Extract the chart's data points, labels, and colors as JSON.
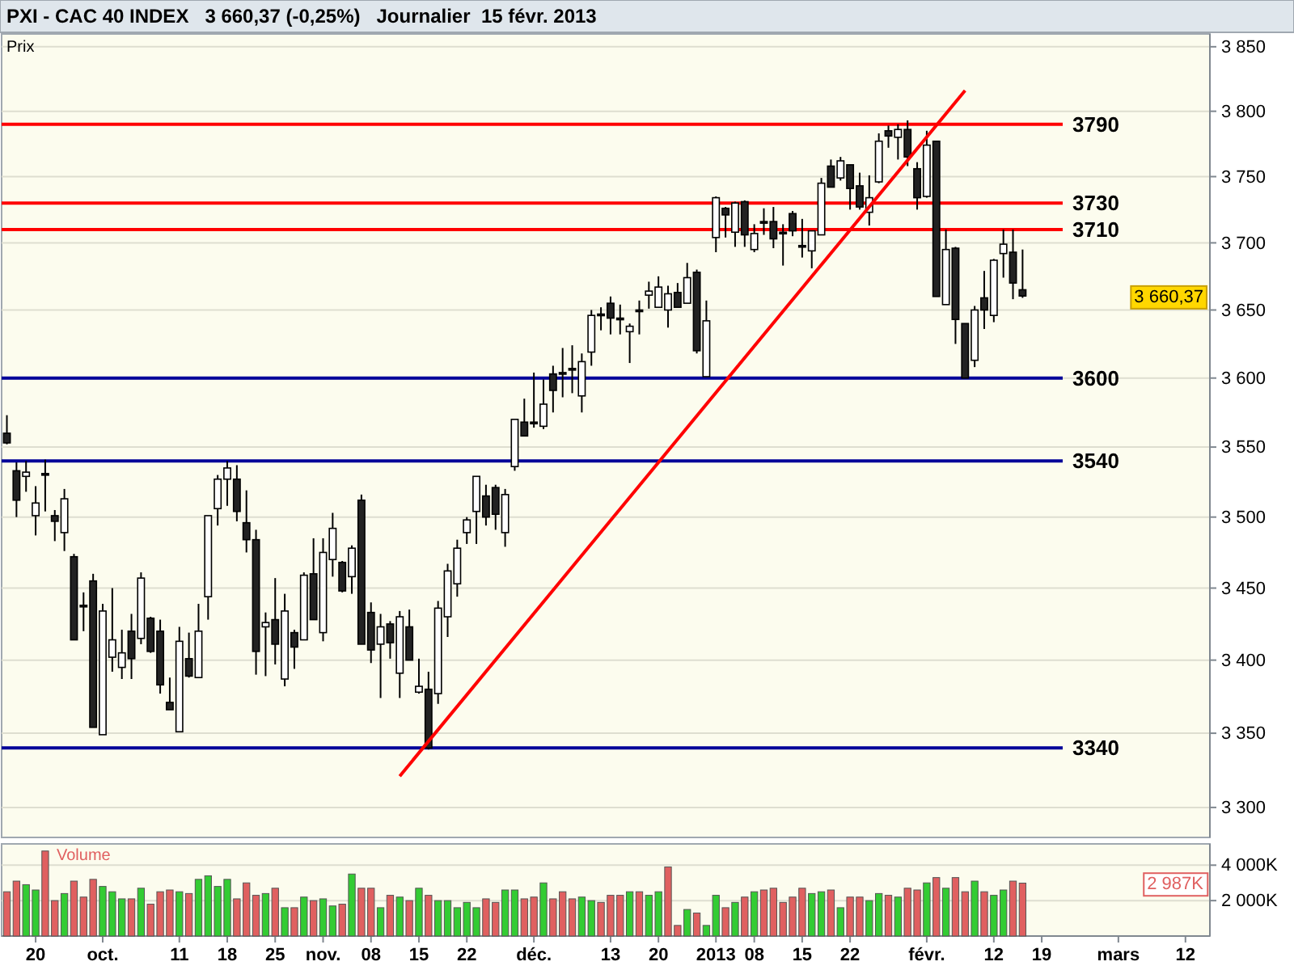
{
  "chart_data": [
    {
      "type": "candlestick",
      "title": "PXI - CAC 40 INDEX   3 660,37 (-0,25%)   Journalier  15 févr. 2013",
      "ylabel": "Prix",
      "categories": [
        null,
        null,
        null,
        null,
        null,
        null,
        null,
        null,
        null,
        null,
        null,
        null,
        null,
        null,
        null,
        null,
        null,
        null,
        null,
        null,
        null,
        null,
        null,
        null,
        null,
        null,
        null,
        null,
        null,
        null,
        null,
        null,
        null,
        null,
        null,
        null,
        null,
        null,
        null,
        null,
        null,
        null,
        null,
        null,
        null,
        null,
        null,
        null,
        null,
        null,
        null,
        null,
        null,
        null,
        null,
        null,
        null,
        null,
        null,
        null,
        null,
        null,
        null,
        null,
        null,
        null,
        null,
        null,
        null,
        null,
        null,
        null,
        null,
        null,
        null,
        null,
        null,
        null,
        null,
        null,
        null,
        null,
        null,
        null,
        null,
        null,
        null,
        null,
        null,
        null,
        null,
        null,
        null,
        null,
        null,
        null,
        null,
        null,
        null,
        null,
        null,
        null,
        null,
        null,
        null,
        null,
        null,
        null,
        null,
        null,
        null,
        null,
        null,
        null,
        null,
        null,
        null,
        null,
        null,
        null,
        null,
        null,
        null,
        null,
        null,
        null
      ],
      "ohlc": [
        [
          3560,
          3573,
          3552,
          3553
        ],
        [
          3533,
          3539,
          3500,
          3512
        ],
        [
          3529,
          3540,
          3518,
          3532
        ],
        [
          3501,
          3522,
          3487,
          3510
        ],
        [
          3531,
          3541,
          3504,
          3530
        ],
        [
          3501,
          3505,
          3483,
          3497
        ],
        [
          3489,
          3520,
          3476,
          3513
        ],
        [
          3472,
          3474,
          3414,
          3414
        ],
        [
          3438,
          3447,
          3420,
          3437
        ],
        [
          3455,
          3460,
          3354,
          3354
        ],
        [
          3349,
          3439,
          3349,
          3434
        ],
        [
          3402,
          3450,
          3392,
          3414
        ],
        [
          3395,
          3421,
          3387,
          3405
        ],
        [
          3420,
          3432,
          3387,
          3401
        ],
        [
          3415,
          3461,
          3411,
          3457
        ],
        [
          3429,
          3430,
          3405,
          3406
        ],
        [
          3420,
          3428,
          3377,
          3383
        ],
        [
          3371,
          3388,
          3366,
          3366
        ],
        [
          3351,
          3423,
          3351,
          3413
        ],
        [
          3401,
          3419,
          3388,
          3389
        ],
        [
          3388,
          3439,
          3388,
          3420
        ],
        [
          3444,
          3501,
          3428,
          3501
        ],
        [
          3506,
          3530,
          3494,
          3527
        ],
        [
          3527,
          3540,
          3508,
          3535
        ],
        [
          3527,
          3537,
          3497,
          3504
        ],
        [
          3496,
          3519,
          3475,
          3484
        ],
        [
          3484,
          3491,
          3390,
          3406
        ],
        [
          3423,
          3433,
          3389,
          3426
        ],
        [
          3428,
          3457,
          3397,
          3411
        ],
        [
          3387,
          3446,
          3382,
          3434
        ],
        [
          3419,
          3421,
          3394,
          3409
        ],
        [
          3414,
          3461,
          3414,
          3459
        ],
        [
          3460,
          3485,
          3428,
          3428
        ],
        [
          3419,
          3485,
          3413,
          3475
        ],
        [
          3470,
          3503,
          3458,
          3492
        ],
        [
          3468,
          3469,
          3447,
          3448
        ],
        [
          3458,
          3480,
          3446,
          3478
        ],
        [
          3512,
          3516,
          3411,
          3411
        ],
        [
          3433,
          3440,
          3398,
          3407
        ],
        [
          3411,
          3432,
          3374,
          3423
        ],
        [
          3425,
          3427,
          3401,
          3412
        ],
        [
          3391,
          3434,
          3374,
          3430
        ],
        [
          3423,
          3435,
          3400,
          3400
        ],
        [
          3378,
          3401,
          3377,
          3382
        ],
        [
          3380,
          3392,
          3339,
          3340
        ],
        [
          3377,
          3441,
          3370,
          3436
        ],
        [
          3430,
          3467,
          3416,
          3462
        ],
        [
          3453,
          3484,
          3444,
          3478
        ],
        [
          3489,
          3500,
          3481,
          3498
        ],
        [
          3504,
          3529,
          3481,
          3529
        ],
        [
          3515,
          3523,
          3494,
          3500
        ],
        [
          3521,
          3523,
          3491,
          3502
        ],
        [
          3489,
          3520,
          3479,
          3516
        ],
        [
          3536,
          3570,
          3533,
          3570
        ],
        [
          3568,
          3585,
          3558,
          3558
        ],
        [
          3568,
          3604,
          3564,
          3567
        ],
        [
          3565,
          3599,
          3563,
          3581
        ],
        [
          3603,
          3609,
          3575,
          3591
        ],
        [
          3604,
          3622,
          3586,
          3603
        ],
        [
          3607,
          3624,
          3589,
          3606
        ],
        [
          3587,
          3618,
          3575,
          3612
        ],
        [
          3619,
          3650,
          3609,
          3646
        ],
        [
          3647,
          3652,
          3635,
          3646
        ],
        [
          3655,
          3660,
          3632,
          3644
        ],
        [
          3644,
          3654,
          3632,
          3643
        ],
        [
          3634,
          3640,
          3611,
          3638
        ],
        [
          3650,
          3657,
          3632,
          3649
        ],
        [
          3661,
          3671,
          3651,
          3664
        ],
        [
          3652,
          3675,
          3652,
          3667
        ],
        [
          3650,
          3668,
          3637,
          3662
        ],
        [
          3663,
          3670,
          3652,
          3652
        ],
        [
          3655,
          3685,
          3655,
          3674
        ],
        [
          3678,
          3680,
          3618,
          3620
        ],
        [
          3601,
          3657,
          3601,
          3642
        ],
        [
          3704,
          3735,
          3693,
          3734
        ],
        [
          3726,
          3727,
          3704,
          3721
        ],
        [
          3708,
          3731,
          3697,
          3730
        ],
        [
          3731,
          3732,
          3697,
          3706
        ],
        [
          3695,
          3714,
          3693,
          3707
        ],
        [
          3716,
          3726,
          3706,
          3715
        ],
        [
          3716,
          3727,
          3696,
          3703
        ],
        [
          3708,
          3714,
          3683,
          3707
        ],
        [
          3722,
          3724,
          3705,
          3709
        ],
        [
          3698,
          3718,
          3689,
          3697
        ],
        [
          3694,
          3709,
          3681,
          3709
        ],
        [
          3706,
          3749,
          3706,
          3745
        ],
        [
          3758,
          3763,
          3742,
          3742
        ],
        [
          3749,
          3765,
          3747,
          3762
        ],
        [
          3759,
          3759,
          3725,
          3741
        ],
        [
          3743,
          3753,
          3725,
          3727
        ],
        [
          3723,
          3751,
          3713,
          3734
        ],
        [
          3746,
          3783,
          3745,
          3777
        ],
        [
          3785,
          3789,
          3772,
          3781
        ],
        [
          3780,
          3790,
          3763,
          3786
        ],
        [
          3786,
          3793,
          3758,
          3765
        ],
        [
          3756,
          3761,
          3725,
          3734
        ],
        [
          3735,
          3785,
          3734,
          3774
        ],
        [
          3777,
          3777,
          3660,
          3660
        ],
        [
          3654,
          3710,
          3654,
          3695
        ],
        [
          3696,
          3697,
          3625,
          3643
        ],
        [
          3640,
          3640,
          3600,
          3600
        ],
        [
          3613,
          3653,
          3608,
          3650
        ],
        [
          3659,
          3679,
          3636,
          3650
        ],
        [
          3646,
          3688,
          3641,
          3687
        ],
        [
          3692,
          3710,
          3674,
          3699
        ],
        [
          3693,
          3710,
          3658,
          3670
        ],
        [
          3665,
          3695,
          3659,
          3660.37
        ],
        null,
        null,
        null,
        null,
        null,
        null,
        null,
        null,
        null,
        null,
        null,
        null,
        null,
        null,
        null,
        null,
        null,
        null,
        null
      ],
      "series": [
        {
          "type": "line",
          "color": "#ff0000",
          "values": [
            null,
            null,
            null,
            null,
            null,
            null,
            null,
            null,
            null,
            null,
            null,
            null,
            null,
            null,
            null,
            null,
            null,
            null,
            null,
            null,
            null,
            null,
            null,
            null,
            null,
            null,
            null,
            null,
            null,
            null,
            null,
            null,
            null,
            null,
            null,
            null,
            null,
            null,
            null,
            null,
            null,
            3321,
            null,
            null,
            null,
            null,
            null,
            null,
            null,
            null,
            null,
            null,
            null,
            null,
            null,
            null,
            null,
            null,
            null,
            null,
            null,
            null,
            null,
            null,
            null,
            null,
            null,
            null,
            null,
            null,
            null,
            null,
            null,
            null,
            null,
            null,
            null,
            null,
            null,
            null,
            null,
            null,
            null,
            null,
            null,
            null,
            null,
            null,
            null,
            null,
            null,
            null,
            null,
            null,
            null,
            null,
            null,
            null,
            null,
            null,
            3816,
            null,
            null,
            null,
            null,
            null,
            null,
            null,
            null,
            null,
            null,
            null,
            null,
            null,
            null,
            null,
            null,
            null,
            null,
            null,
            null,
            null,
            null,
            null,
            null,
            null
          ]
        }
      ],
      "log": true,
      "ylim": [
        3280,
        3860
      ],
      "yticks": [
        {
          "value": 3300,
          "label": "3 300"
        },
        {
          "value": 3350,
          "label": "3 350"
        },
        {
          "value": 3400,
          "label": "3 400"
        },
        {
          "value": 3450,
          "label": "3 450"
        },
        {
          "value": 3500,
          "label": "3 500"
        },
        {
          "value": 3550,
          "label": "3 550"
        },
        {
          "value": 3600,
          "label": "3 600"
        },
        {
          "value": 3650,
          "label": "3 650"
        },
        {
          "value": 3700,
          "label": "3 700"
        },
        {
          "value": 3750,
          "label": "3 750"
        },
        {
          "value": 3800,
          "label": "3 800"
        },
        {
          "value": 3850,
          "label": "3 850"
        }
      ],
      "grid": "y",
      "tick_labels": "y",
      "ref_lines": [
        {
          "axis": "y",
          "value": 3790,
          "label": "3790",
          "color": "#ff0000"
        },
        {
          "axis": "y",
          "value": 3730,
          "label": "3730",
          "color": "#ff0000"
        },
        {
          "axis": "y",
          "value": 3710,
          "label": "3710",
          "color": "#ff0000"
        },
        {
          "axis": "y",
          "value": 3600,
          "label": "3600",
          "color": "#000099"
        },
        {
          "axis": "y",
          "value": 3540,
          "label": "3540",
          "color": "#000099"
        },
        {
          "axis": "y",
          "value": 3340,
          "label": "3340",
          "color": "#000099"
        }
      ],
      "annotations": [
        "3 660,37"
      ]
    },
    {
      "type": "bar",
      "title": "Volume",
      "categories": [
        null,
        null,
        null,
        "20",
        null,
        null,
        null,
        null,
        null,
        null,
        "oct.",
        null,
        null,
        null,
        null,
        null,
        null,
        null,
        "11",
        null,
        null,
        null,
        null,
        "18",
        null,
        null,
        null,
        null,
        "25",
        null,
        null,
        null,
        null,
        "nov.",
        null,
        null,
        null,
        null,
        "08",
        null,
        null,
        null,
        null,
        "15",
        null,
        null,
        null,
        null,
        "22",
        null,
        null,
        null,
        null,
        null,
        null,
        "déc.",
        null,
        null,
        null,
        null,
        null,
        null,
        null,
        "13",
        null,
        null,
        null,
        null,
        "20",
        null,
        null,
        null,
        null,
        null,
        "2013",
        null,
        null,
        null,
        "08",
        null,
        null,
        null,
        null,
        "15",
        null,
        null,
        null,
        null,
        "22",
        null,
        null,
        null,
        null,
        null,
        null,
        null,
        "févr.",
        null,
        null,
        null,
        null,
        null,
        null,
        "12",
        null,
        null,
        null,
        null,
        "19",
        null,
        null,
        null,
        null,
        null,
        null,
        null,
        "mars",
        null,
        null,
        null,
        null,
        null,
        null,
        "12",
        null,
        null
      ],
      "values": [
        2500,
        3100,
        2900,
        2600,
        4800,
        2000,
        2400,
        3100,
        2200,
        3200,
        2800,
        2500,
        2100,
        2100,
        2700,
        1800,
        2500,
        2600,
        2500,
        2400,
        3200,
        3400,
        2800,
        3200,
        2100,
        3000,
        2300,
        2400,
        2700,
        1600,
        1600,
        2200,
        2000,
        2100,
        1700,
        1800,
        3500,
        2700,
        2700,
        1600,
        2300,
        2200,
        2000,
        2700,
        2300,
        2000,
        2000,
        1600,
        1900,
        1600,
        2100,
        1900,
        2600,
        2600,
        2100,
        2200,
        3000,
        2100,
        2500,
        2100,
        2200,
        2000,
        1900,
        2300,
        2300,
        2500,
        2500,
        2300,
        2500,
        3900,
        600,
        1500,
        1300,
        600,
        2300,
        1600,
        1900,
        2200,
        2500,
        2600,
        2700,
        1900,
        2200,
        2700,
        2400,
        2500,
        2600,
        1600,
        2200,
        2200,
        2000,
        2400,
        2300,
        2200,
        2700,
        2600,
        3000,
        3300,
        2700,
        3300,
        2500,
        3100,
        2500,
        2300,
        2600,
        3100,
        2987,
        null,
        null,
        null,
        null,
        null,
        null,
        null,
        null,
        null,
        null,
        null,
        null,
        null,
        null,
        null,
        null,
        null,
        null,
        null
      ],
      "colors": [
        "#e06060",
        "#e06060",
        "#33cc33",
        "#33cc33",
        "#e06060",
        "#e06060",
        "#33cc33",
        "#e06060",
        "#e06060",
        "#e06060",
        "#33cc33",
        "#33cc33",
        "#33cc33",
        "#e06060",
        "#33cc33",
        "#e06060",
        "#e06060",
        "#e06060",
        "#33cc33",
        "#e06060",
        "#33cc33",
        "#33cc33",
        "#33cc33",
        "#33cc33",
        "#e06060",
        "#e06060",
        "#e06060",
        "#33cc33",
        "#e06060",
        "#33cc33",
        "#e06060",
        "#33cc33",
        "#e06060",
        "#33cc33",
        "#33cc33",
        "#e06060",
        "#33cc33",
        "#e06060",
        "#e06060",
        "#33cc33",
        "#e06060",
        "#33cc33",
        "#e06060",
        "#33cc33",
        "#e06060",
        "#33cc33",
        "#33cc33",
        "#33cc33",
        "#33cc33",
        "#33cc33",
        "#e06060",
        "#e06060",
        "#33cc33",
        "#33cc33",
        "#e06060",
        "#e06060",
        "#33cc33",
        "#e06060",
        "#e06060",
        "#e06060",
        "#33cc33",
        "#33cc33",
        "#e06060",
        "#e06060",
        "#e06060",
        "#33cc33",
        "#e06060",
        "#33cc33",
        "#33cc33",
        "#e06060",
        "#e06060",
        "#33cc33",
        "#e06060",
        "#33cc33",
        "#33cc33",
        "#e06060",
        "#33cc33",
        "#e06060",
        "#33cc33",
        "#e06060",
        "#e06060",
        "#e06060",
        "#e06060",
        "#e06060",
        "#33cc33",
        "#33cc33",
        "#e06060",
        "#33cc33",
        "#e06060",
        "#e06060",
        "#33cc33",
        "#33cc33",
        "#e06060",
        "#33cc33",
        "#e06060",
        "#e06060",
        "#33cc33",
        "#e06060",
        "#33cc33",
        "#e06060",
        "#e06060",
        "#33cc33",
        "#e06060",
        "#33cc33",
        "#33cc33",
        "#e06060",
        "#e06060",
        null,
        null,
        null,
        null,
        null,
        null,
        null,
        null,
        null,
        null,
        null,
        null,
        null,
        null,
        null,
        null,
        null,
        null,
        null
      ],
      "ylim": [
        0,
        5200
      ],
      "yticks": [
        {
          "value": 2000,
          "label": "2 000K"
        },
        {
          "value": 4000,
          "label": "4 000K"
        }
      ],
      "grid": "y",
      "annotations": [
        "2 987K"
      ]
    }
  ]
}
